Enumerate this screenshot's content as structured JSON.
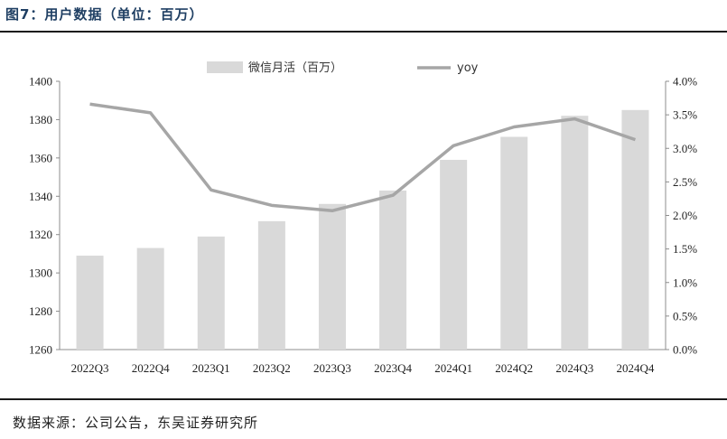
{
  "figure": {
    "title": "图7：用户数据（单位：百万）",
    "source": "数据来源：公司公告，东吴证券研究所"
  },
  "chart_data": {
    "type": "bar",
    "categories": [
      "2022Q3",
      "2022Q4",
      "2023Q1",
      "2023Q2",
      "2023Q3",
      "2023Q4",
      "2024Q1",
      "2024Q2",
      "2024Q3",
      "2024Q4"
    ],
    "series": [
      {
        "name": "微信月活（百万）",
        "type": "bar",
        "axis": "left",
        "values": [
          1309,
          1313,
          1319,
          1327,
          1336,
          1343,
          1359,
          1371,
          1382,
          1385
        ]
      },
      {
        "name": "yoy",
        "type": "line",
        "axis": "right",
        "values": [
          3.66,
          3.53,
          2.38,
          2.15,
          2.07,
          2.3,
          3.04,
          3.32,
          3.44,
          3.13
        ]
      }
    ],
    "y_left": {
      "min": 1260,
      "max": 1400,
      "step": 20,
      "ticks": [
        "1260",
        "1280",
        "1300",
        "1320",
        "1340",
        "1360",
        "1380",
        "1400"
      ]
    },
    "y_right": {
      "min": 0,
      "max": 4,
      "step": 0.5,
      "ticks": [
        "0.0%",
        "0.5%",
        "1.0%",
        "1.5%",
        "2.0%",
        "2.5%",
        "3.0%",
        "3.5%",
        "4.0%"
      ]
    },
    "legend_position": "top-center",
    "grid": false,
    "colors": {
      "bar": "#d9d9d9",
      "line": "#a6a6a6",
      "axis": "#8c8c8c"
    }
  }
}
